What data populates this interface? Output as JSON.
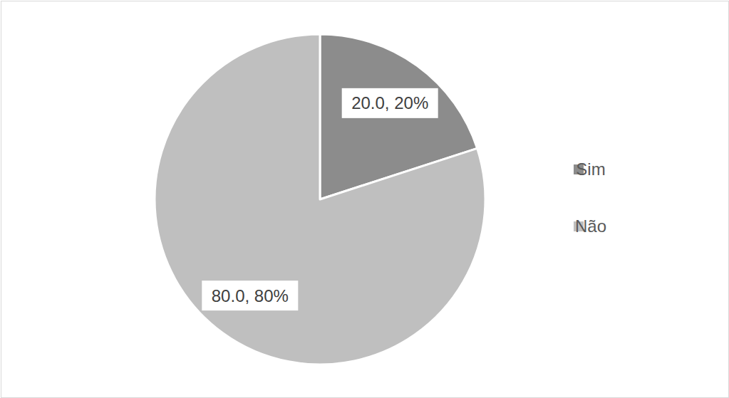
{
  "chart_data": {
    "type": "pie",
    "categories": [
      "Sim",
      "Não"
    ],
    "values": [
      20,
      80
    ],
    "value_labels": [
      "20.0, 20%",
      "80.0, 80%"
    ],
    "colors": [
      "#8c8c8c",
      "#bfbfbf"
    ],
    "data_labels": true,
    "legend": "right"
  }
}
